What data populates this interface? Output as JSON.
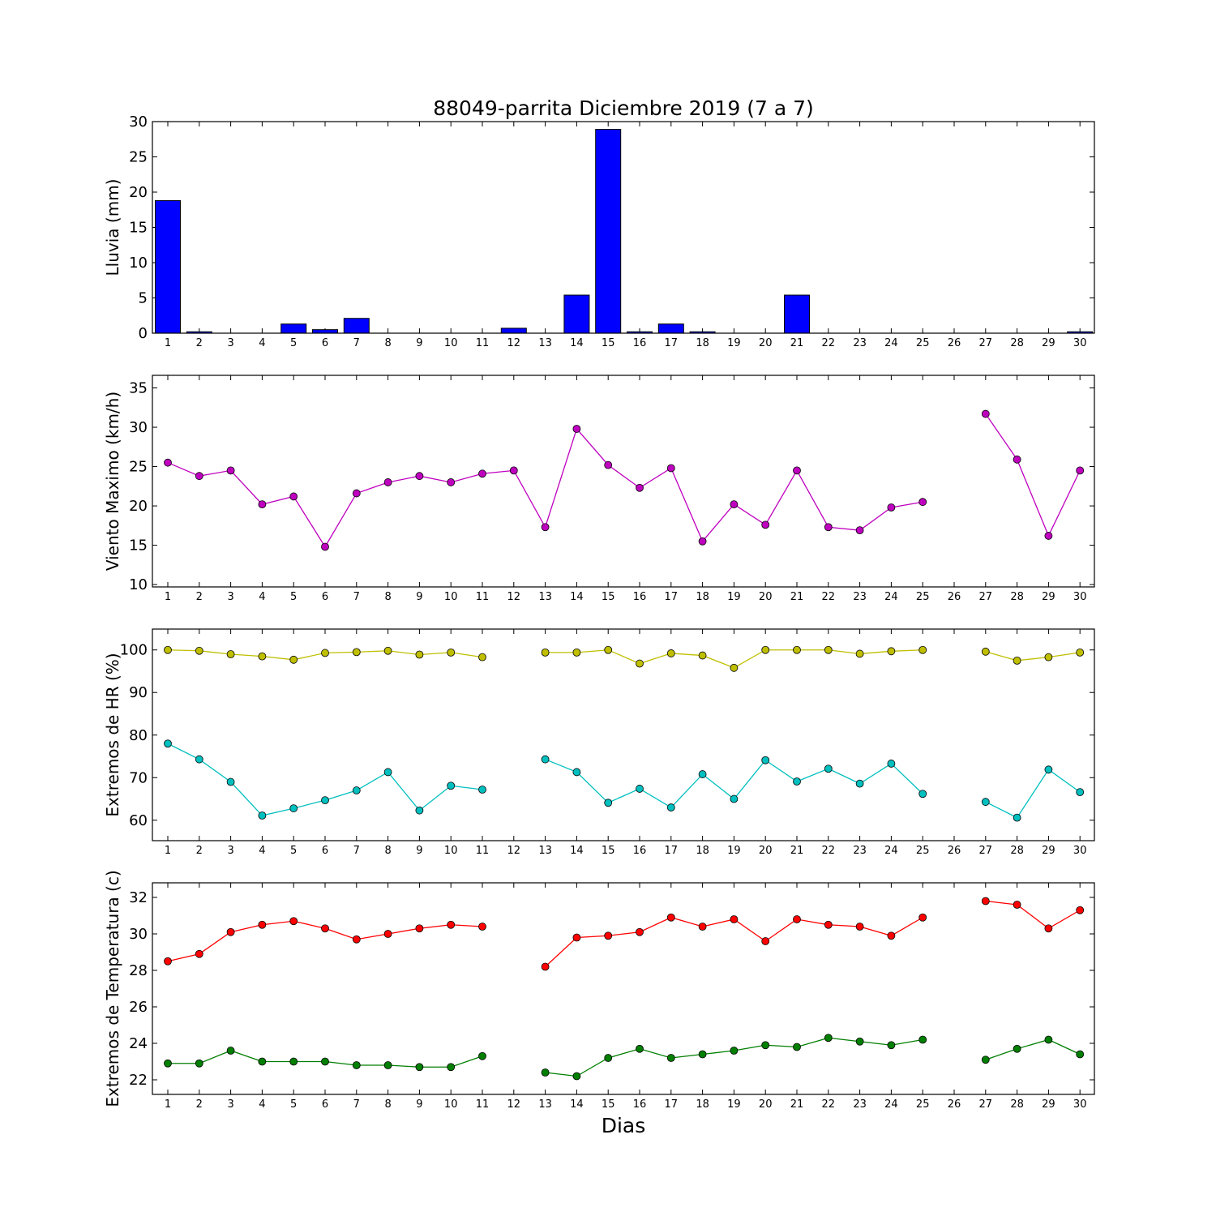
{
  "title": "88049-parrita Diciembre 2019  (7 a 7)",
  "xlabel": "Dias",
  "colors": {
    "rain": "#0000ff",
    "wind": "#bf00bf",
    "hr_max": "#bfbf00",
    "hr_min": "#00bfbf",
    "temp_max": "#ff0000",
    "temp_min": "#007f00"
  },
  "chart_data": [
    {
      "type": "bar",
      "ylabel": "Lluvia (mm)",
      "ylim": [
        0,
        30
      ],
      "yticks": [
        0,
        5,
        10,
        15,
        20,
        25,
        30
      ],
      "categories": [
        1,
        2,
        3,
        4,
        5,
        6,
        7,
        8,
        9,
        10,
        11,
        12,
        13,
        14,
        15,
        16,
        17,
        18,
        19,
        20,
        21,
        22,
        23,
        24,
        25,
        26,
        27,
        28,
        29,
        30
      ],
      "values": [
        18.8,
        0.2,
        0,
        0,
        1.3,
        0.5,
        2.1,
        0,
        0,
        0,
        0,
        0.7,
        0,
        5.4,
        28.9,
        0.2,
        1.3,
        0.2,
        0,
        0,
        5.4,
        0,
        0,
        0,
        0,
        0,
        0,
        0,
        0,
        0.2
      ]
    },
    {
      "type": "line",
      "ylabel": "Viento Maximo (km/h)",
      "ylim": [
        9.7,
        36.6
      ],
      "yticks": [
        10,
        15,
        20,
        25,
        30,
        35
      ],
      "x": [
        1,
        2,
        3,
        4,
        5,
        6,
        7,
        8,
        9,
        10,
        11,
        12,
        13,
        14,
        15,
        16,
        17,
        18,
        19,
        20,
        21,
        22,
        23,
        24,
        25,
        26,
        27,
        28,
        29,
        30
      ],
      "series": [
        {
          "values": [
            25.5,
            23.8,
            24.5,
            20.2,
            21.2,
            14.8,
            21.6,
            23.0,
            23.8,
            23.0,
            24.1,
            24.5,
            17.3,
            29.8,
            25.2,
            22.3,
            24.8,
            15.5,
            20.2,
            17.6,
            24.5,
            17.3,
            16.9,
            19.8,
            20.5,
            null,
            31.7,
            25.9,
            16.2,
            24.5
          ]
        }
      ]
    },
    {
      "type": "line",
      "ylabel": "Extremos de HR (%)",
      "ylim": [
        55.2,
        104.9
      ],
      "yticks": [
        60,
        70,
        80,
        90,
        100
      ],
      "x": [
        1,
        2,
        3,
        4,
        5,
        6,
        7,
        8,
        9,
        10,
        11,
        12,
        13,
        14,
        15,
        16,
        17,
        18,
        19,
        20,
        21,
        22,
        23,
        24,
        25,
        26,
        27,
        28,
        29,
        30
      ],
      "series": [
        {
          "values": [
            100,
            99.8,
            99,
            98.5,
            97.7,
            99.3,
            99.5,
            99.8,
            98.9,
            99.4,
            98.3,
            null,
            99.4,
            99.4,
            100,
            96.8,
            99.2,
            98.7,
            95.8,
            100,
            100,
            100,
            99.1,
            99.7,
            100,
            null,
            99.6,
            97.5,
            98.3,
            99.4
          ]
        },
        {
          "values": [
            78,
            74.3,
            69,
            61.1,
            62.8,
            64.7,
            67,
            71.3,
            62.3,
            68.1,
            67.2,
            null,
            74.3,
            71.3,
            64.1,
            67.4,
            63,
            70.8,
            65,
            74.1,
            69.1,
            72.1,
            68.6,
            73.3,
            66.2,
            null,
            64.3,
            60.6,
            71.9,
            66.6
          ]
        }
      ]
    },
    {
      "type": "line",
      "ylabel": "Extremos de Temperatura (c)",
      "ylim": [
        21.2,
        32.8
      ],
      "yticks": [
        22,
        24,
        26,
        28,
        30,
        32
      ],
      "x": [
        1,
        2,
        3,
        4,
        5,
        6,
        7,
        8,
        9,
        10,
        11,
        12,
        13,
        14,
        15,
        16,
        17,
        18,
        19,
        20,
        21,
        22,
        23,
        24,
        25,
        26,
        27,
        28,
        29,
        30
      ],
      "series": [
        {
          "values": [
            28.5,
            28.9,
            30.1,
            30.5,
            30.7,
            30.3,
            29.7,
            30.0,
            30.3,
            30.5,
            30.4,
            null,
            28.2,
            29.8,
            29.9,
            30.1,
            30.9,
            30.4,
            30.8,
            29.6,
            30.8,
            30.5,
            30.4,
            29.9,
            30.9,
            null,
            31.8,
            31.6,
            30.3,
            31.3
          ]
        },
        {
          "values": [
            22.9,
            22.9,
            23.6,
            23.0,
            23.0,
            23.0,
            22.8,
            22.8,
            22.7,
            22.7,
            23.3,
            null,
            22.4,
            22.2,
            23.2,
            23.7,
            23.2,
            23.4,
            23.6,
            23.9,
            23.8,
            24.3,
            24.1,
            23.9,
            24.2,
            null,
            23.1,
            23.7,
            24.2,
            23.4
          ]
        }
      ]
    }
  ]
}
